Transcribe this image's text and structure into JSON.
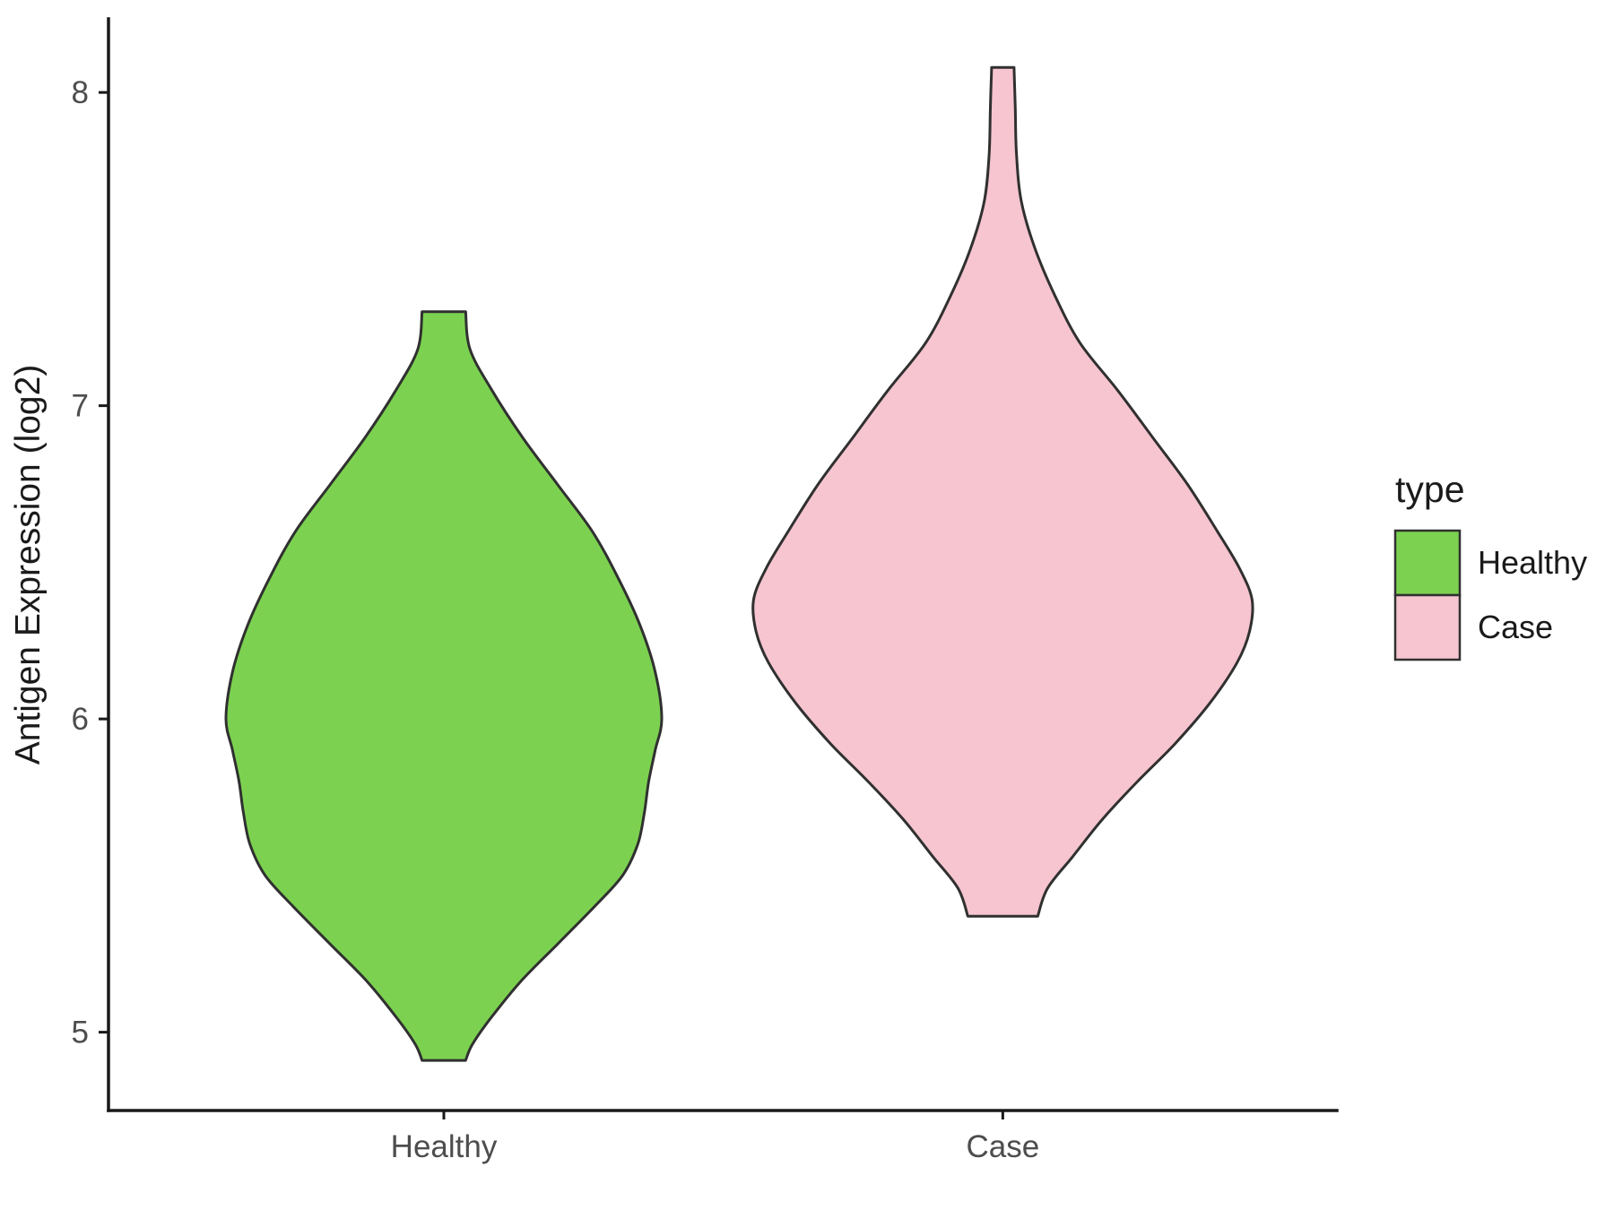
{
  "chart_data": {
    "type": "violin",
    "title": "",
    "xlabel": "",
    "ylabel": "Antigen Expression (log2)",
    "categories": [
      "Healthy",
      "Case"
    ],
    "yticks": [
      5,
      6,
      7,
      8
    ],
    "ylim": [
      4.75,
      8.235
    ],
    "grid": false,
    "legend": {
      "title": "type",
      "position": "right",
      "entries": [
        {
          "label": "Healthy",
          "color": "#7CD250"
        },
        {
          "label": "Case",
          "color": "#F6C5CF"
        }
      ]
    },
    "colors": {
      "outline": "#303030",
      "axis": "#1A1A1A",
      "tick_label": "#4D4D4D",
      "text": "#1A1A1A",
      "background": "#FFFFFF"
    },
    "series": [
      {
        "name": "Healthy",
        "color": "#7CD250",
        "center_frac": 0.273,
        "max_halfwidth": 243,
        "y_range": [
          4.91,
          7.3
        ],
        "profile": [
          [
            7.3,
            0.1
          ],
          [
            7.18,
            0.12
          ],
          [
            7.05,
            0.22
          ],
          [
            6.9,
            0.36
          ],
          [
            6.75,
            0.52
          ],
          [
            6.6,
            0.68
          ],
          [
            6.45,
            0.8
          ],
          [
            6.3,
            0.9
          ],
          [
            6.15,
            0.97
          ],
          [
            6.0,
            1.0
          ],
          [
            5.9,
            0.97
          ],
          [
            5.8,
            0.94
          ],
          [
            5.7,
            0.92
          ],
          [
            5.6,
            0.89
          ],
          [
            5.5,
            0.82
          ],
          [
            5.4,
            0.69
          ],
          [
            5.28,
            0.52
          ],
          [
            5.16,
            0.35
          ],
          [
            5.04,
            0.21
          ],
          [
            4.96,
            0.13
          ],
          [
            4.91,
            0.1
          ]
        ]
      },
      {
        "name": "Case",
        "color": "#F6C5CF",
        "center_frac": 0.728,
        "max_halfwidth": 278,
        "y_range": [
          5.37,
          8.08
        ],
        "profile": [
          [
            8.08,
            0.045
          ],
          [
            7.95,
            0.05
          ],
          [
            7.8,
            0.055
          ],
          [
            7.65,
            0.075
          ],
          [
            7.5,
            0.13
          ],
          [
            7.35,
            0.21
          ],
          [
            7.2,
            0.31
          ],
          [
            7.05,
            0.46
          ],
          [
            6.9,
            0.6
          ],
          [
            6.75,
            0.74
          ],
          [
            6.6,
            0.86
          ],
          [
            6.48,
            0.95
          ],
          [
            6.38,
            1.0
          ],
          [
            6.28,
            0.99
          ],
          [
            6.18,
            0.94
          ],
          [
            6.05,
            0.83
          ],
          [
            5.92,
            0.69
          ],
          [
            5.8,
            0.54
          ],
          [
            5.68,
            0.4
          ],
          [
            5.56,
            0.28
          ],
          [
            5.46,
            0.18
          ],
          [
            5.37,
            0.14
          ]
        ]
      }
    ]
  }
}
